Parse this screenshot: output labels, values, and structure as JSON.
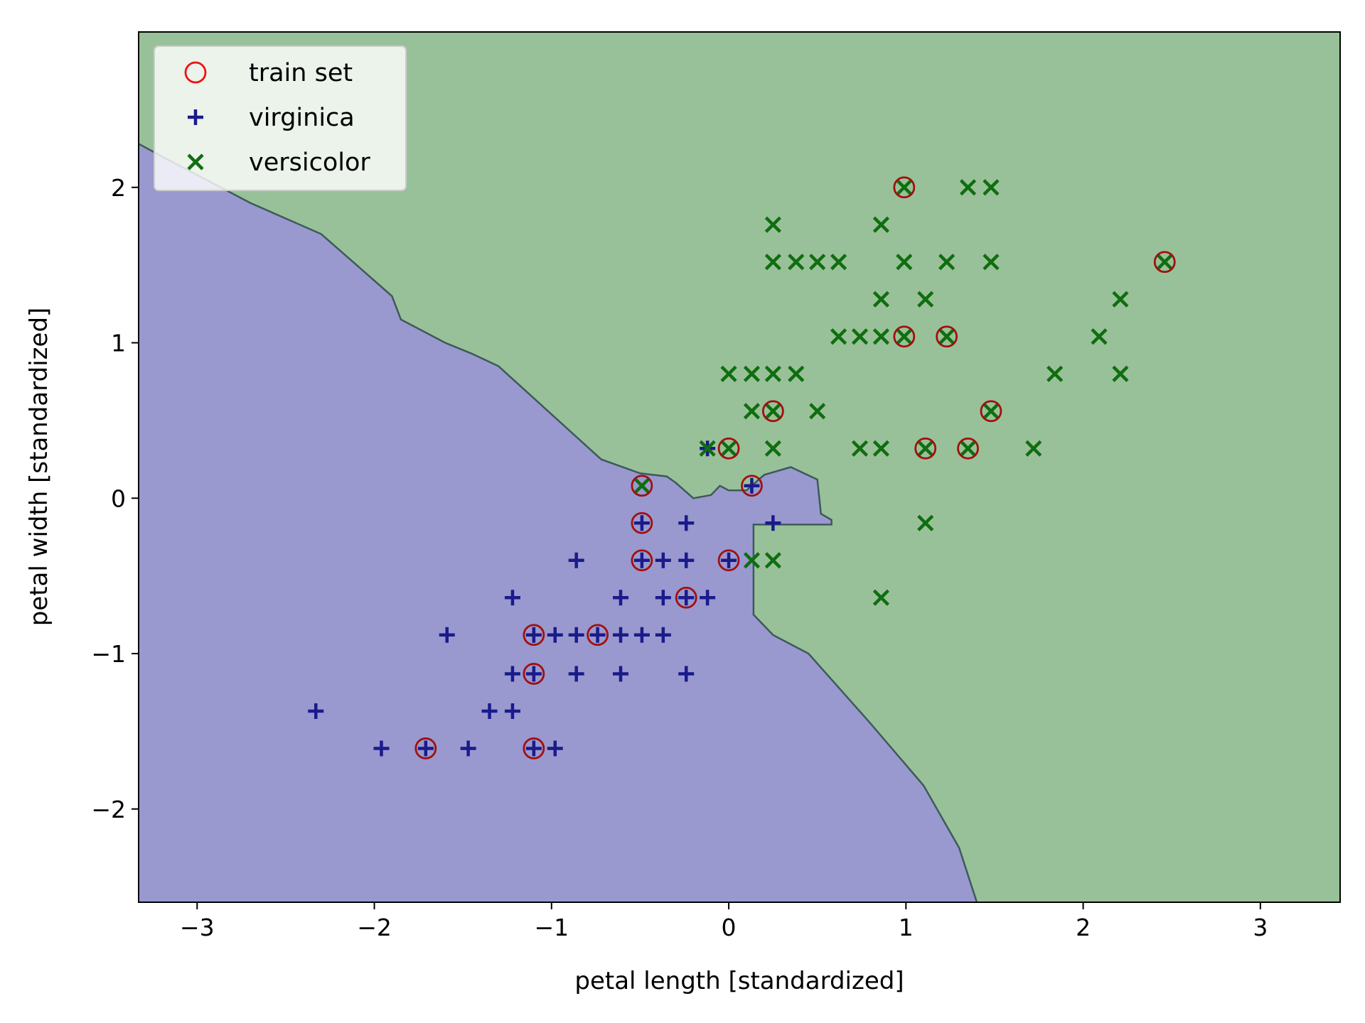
{
  "chart_data": {
    "type": "scatter",
    "title": "",
    "xlabel": "petal length [standardized]",
    "ylabel": "petal width [standardized]",
    "xlim": [
      -3.33,
      3.45
    ],
    "ylim": [
      -2.6,
      3.0
    ],
    "x_ticks": [
      -3,
      -2,
      -1,
      0,
      1,
      2,
      3
    ],
    "x_tick_labels": [
      "−3",
      "−2",
      "−1",
      "0",
      "1",
      "2",
      "3"
    ],
    "y_ticks": [
      -2,
      -1,
      0,
      1,
      2
    ],
    "y_tick_labels": [
      "−2",
      "−1",
      "0",
      "1",
      "2"
    ],
    "grid": false,
    "legend_position": "top-left",
    "regions": {
      "virginica_color": "#9999cf",
      "versicolor_color": "#99c199",
      "boundary_color": "#3d5a5a",
      "boundary": [
        [
          -3.33,
          2.28
        ],
        [
          -3.2,
          2.2
        ],
        [
          -2.7,
          1.9
        ],
        [
          -2.3,
          1.7
        ],
        [
          -2.1,
          1.5
        ],
        [
          -1.9,
          1.3
        ],
        [
          -1.85,
          1.15
        ],
        [
          -1.6,
          1.0
        ],
        [
          -1.45,
          0.93
        ],
        [
          -1.3,
          0.85
        ],
        [
          -0.72,
          0.25
        ],
        [
          -0.5,
          0.16
        ],
        [
          -0.35,
          0.14
        ],
        [
          -0.3,
          0.1
        ],
        [
          -0.25,
          0.05
        ],
        [
          -0.2,
          0.0
        ],
        [
          -0.1,
          0.02
        ],
        [
          -0.05,
          0.08
        ],
        [
          0.0,
          0.05
        ],
        [
          0.1,
          0.05
        ],
        [
          0.2,
          0.15
        ],
        [
          0.35,
          0.2
        ],
        [
          0.5,
          0.12
        ],
        [
          0.52,
          -0.1
        ],
        [
          0.58,
          -0.14
        ],
        [
          0.58,
          -0.17
        ],
        [
          0.14,
          -0.17
        ],
        [
          0.14,
          -0.75
        ],
        [
          0.25,
          -0.88
        ],
        [
          0.45,
          -1.0
        ],
        [
          0.8,
          -1.45
        ],
        [
          1.1,
          -1.85
        ],
        [
          1.3,
          -2.25
        ],
        [
          1.4,
          -2.6
        ]
      ]
    },
    "series": [
      {
        "name": "virginica",
        "marker": "+",
        "color": "#1a1a8c",
        "points": [
          [
            -2.33,
            -1.37
          ],
          [
            -1.96,
            -1.61
          ],
          [
            -1.71,
            -1.61
          ],
          [
            -1.47,
            -1.61
          ],
          [
            -1.1,
            -1.61
          ],
          [
            -0.98,
            -1.61
          ],
          [
            -1.35,
            -1.37
          ],
          [
            -1.22,
            -1.37
          ],
          [
            -1.22,
            -1.13
          ],
          [
            -1.1,
            -1.13
          ],
          [
            -0.86,
            -1.13
          ],
          [
            -0.61,
            -1.13
          ],
          [
            -0.24,
            -1.13
          ],
          [
            -1.59,
            -0.88
          ],
          [
            -1.1,
            -0.88
          ],
          [
            -0.98,
            -0.88
          ],
          [
            -0.86,
            -0.88
          ],
          [
            -0.74,
            -0.88
          ],
          [
            -0.61,
            -0.88
          ],
          [
            -0.49,
            -0.88
          ],
          [
            -0.37,
            -0.88
          ],
          [
            -1.22,
            -0.64
          ],
          [
            -0.61,
            -0.64
          ],
          [
            -0.37,
            -0.64
          ],
          [
            -0.24,
            -0.64
          ],
          [
            -0.12,
            -0.64
          ],
          [
            -0.86,
            -0.4
          ],
          [
            -0.49,
            -0.4
          ],
          [
            -0.37,
            -0.4
          ],
          [
            -0.24,
            -0.4
          ],
          [
            0.0,
            -0.4
          ],
          [
            -0.49,
            -0.16
          ],
          [
            -0.24,
            -0.16
          ],
          [
            0.25,
            -0.16
          ],
          [
            0.13,
            0.08
          ],
          [
            -0.12,
            0.32
          ]
        ]
      },
      {
        "name": "versicolor",
        "marker": "x",
        "color": "#0f6e0f",
        "points": [
          [
            0.86,
            -0.64
          ],
          [
            0.13,
            -0.4
          ],
          [
            0.25,
            -0.4
          ],
          [
            1.11,
            -0.16
          ],
          [
            -0.49,
            0.08
          ],
          [
            -0.12,
            0.32
          ],
          [
            0.0,
            0.32
          ],
          [
            0.25,
            0.32
          ],
          [
            0.74,
            0.32
          ],
          [
            0.86,
            0.32
          ],
          [
            1.11,
            0.32
          ],
          [
            1.35,
            0.32
          ],
          [
            1.72,
            0.32
          ],
          [
            0.13,
            0.56
          ],
          [
            0.25,
            0.56
          ],
          [
            0.5,
            0.56
          ],
          [
            1.48,
            0.56
          ],
          [
            0.0,
            0.8
          ],
          [
            0.13,
            0.8
          ],
          [
            0.25,
            0.8
          ],
          [
            0.38,
            0.8
          ],
          [
            1.84,
            0.8
          ],
          [
            2.21,
            0.8
          ],
          [
            0.62,
            1.04
          ],
          [
            0.74,
            1.04
          ],
          [
            0.86,
            1.04
          ],
          [
            0.99,
            1.04
          ],
          [
            1.23,
            1.04
          ],
          [
            2.09,
            1.04
          ],
          [
            0.86,
            1.28
          ],
          [
            1.11,
            1.28
          ],
          [
            2.21,
            1.28
          ],
          [
            0.25,
            1.52
          ],
          [
            0.38,
            1.52
          ],
          [
            0.5,
            1.52
          ],
          [
            0.62,
            1.52
          ],
          [
            0.99,
            1.52
          ],
          [
            1.23,
            1.52
          ],
          [
            1.48,
            1.52
          ],
          [
            2.46,
            1.52
          ],
          [
            0.25,
            1.76
          ],
          [
            0.86,
            1.76
          ],
          [
            0.99,
            2.0
          ],
          [
            1.35,
            2.0
          ],
          [
            1.48,
            2.0
          ]
        ]
      },
      {
        "name": "train set",
        "marker": "o",
        "color": "#a01010",
        "points": [
          [
            -1.71,
            -1.61
          ],
          [
            -1.1,
            -1.61
          ],
          [
            -1.1,
            -1.13
          ],
          [
            -1.1,
            -0.88
          ],
          [
            -0.74,
            -0.88
          ],
          [
            -0.24,
            -0.64
          ],
          [
            -0.49,
            -0.4
          ],
          [
            0.0,
            -0.4
          ],
          [
            -0.49,
            -0.16
          ],
          [
            -0.49,
            0.08
          ],
          [
            0.13,
            0.08
          ],
          [
            0.0,
            0.32
          ],
          [
            1.11,
            0.32
          ],
          [
            1.35,
            0.32
          ],
          [
            0.25,
            0.56
          ],
          [
            1.48,
            0.56
          ],
          [
            0.99,
            1.04
          ],
          [
            1.23,
            1.04
          ],
          [
            2.46,
            1.52
          ],
          [
            0.99,
            2.0
          ]
        ]
      }
    ],
    "legend": [
      {
        "label": "train set",
        "marker": "o",
        "color": "#ee1111"
      },
      {
        "label": "virginica",
        "marker": "+",
        "color": "#1a1a8c"
      },
      {
        "label": "versicolor",
        "marker": "x",
        "color": "#0f6e0f"
      }
    ]
  }
}
